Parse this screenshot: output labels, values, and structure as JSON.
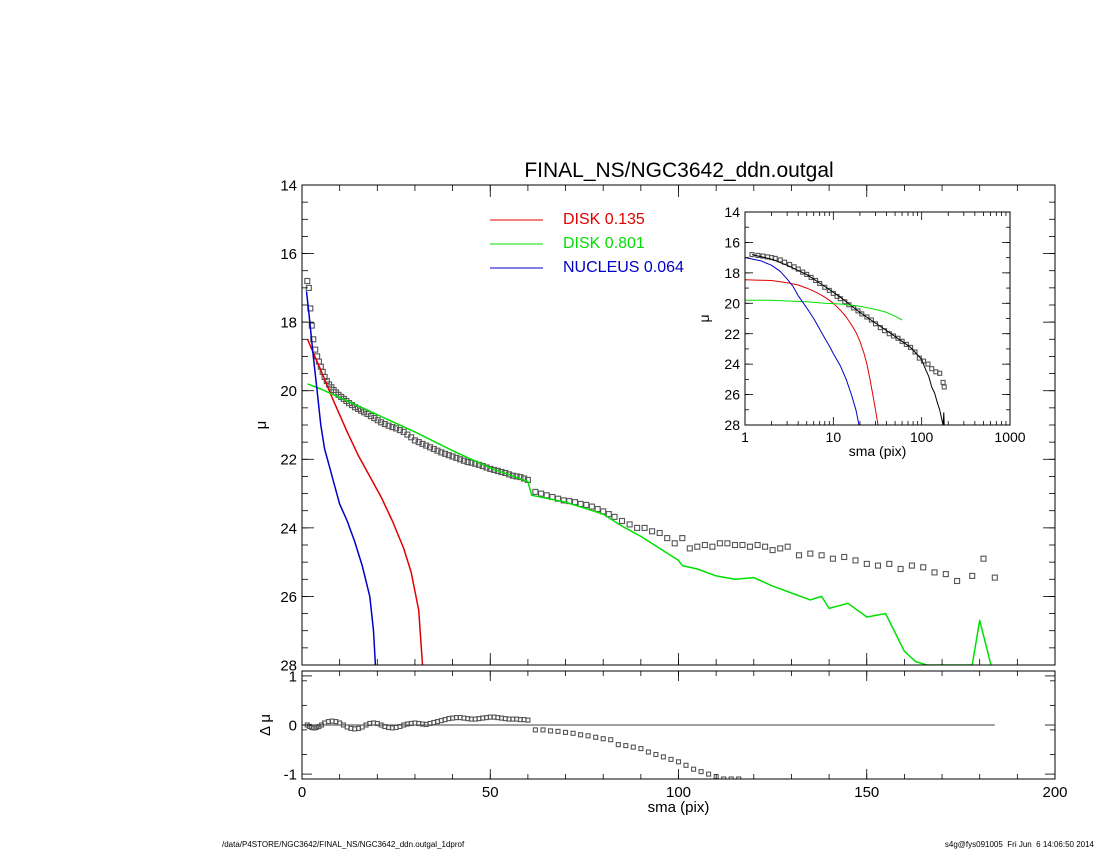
{
  "page": {
    "footer_left": "/data/P4STORE/NGC3642/FINAL_NS/NGC3642_ddn.outgal_1dprof",
    "footer_right": "s4g@fys091005  Fri Jun  6 14:06:50 2014"
  },
  "chart_data": [
    {
      "id": "main",
      "type": "scatter",
      "title": "FINAL_NS/NGC3642_ddn.outgal",
      "xlabel": "",
      "ylabel": "μ",
      "xlim": [
        0,
        200
      ],
      "ylim": [
        28,
        14
      ],
      "xticks": [
        0,
        50,
        100,
        150,
        200
      ],
      "yticks": [
        14,
        16,
        18,
        20,
        22,
        24,
        26,
        28
      ],
      "show_x_tick_labels": false,
      "legend": {
        "placement": "top-center",
        "entries": [
          {
            "label": "DISK  0.135",
            "color": "#e00000"
          },
          {
            "label": "DISK  0.801",
            "color": "#00e000"
          },
          {
            "label": "NUCLEUS  0.064",
            "color": "#0000c8"
          }
        ]
      },
      "series": [
        {
          "name": "",
          "kind": "markers",
          "color": "#555555",
          "x": [
            1.4,
            1.8,
            2.2,
            2.6,
            3.0,
            3.5,
            4.0,
            4.5,
            5.0,
            5.5,
            6.0,
            6.6,
            7.2,
            7.8,
            8.4,
            9.0,
            9.7,
            10.4,
            11.1,
            11.8,
            12.5,
            13.3,
            14.1,
            14.9,
            15.7,
            16.5,
            17.4,
            18.3,
            19.2,
            20.1,
            21.0,
            22.0,
            23.0,
            24.0,
            25.0,
            26.0,
            27.0,
            28.0,
            29.0,
            30.0,
            31.0,
            32.0,
            33.0,
            34.0,
            35.0,
            36.0,
            37.0,
            38.0,
            39.0,
            40.0,
            41.0,
            42.0,
            43.0,
            44.0,
            45.0,
            46.0,
            47.0,
            48.0,
            49.0,
            50.0,
            51.0,
            52.0,
            53.0,
            54.0,
            55.0,
            56.0,
            57.0,
            58.0,
            59.0,
            60.0,
            62,
            63.5,
            65,
            66.5,
            68,
            69.5,
            71,
            72.5,
            74,
            75.5,
            77,
            78.5,
            80,
            81.5,
            83,
            85,
            87,
            89,
            91,
            93,
            95,
            97,
            99,
            101,
            103,
            105,
            107,
            109,
            111,
            113,
            115,
            117,
            119,
            121,
            123,
            125,
            127,
            129,
            132,
            135,
            138,
            141,
            144,
            147,
            150,
            153,
            156,
            159,
            162,
            165,
            168,
            171,
            174,
            178,
            181,
            184
          ],
          "y": [
            16.8,
            17.0,
            17.6,
            18.1,
            18.5,
            18.8,
            19.0,
            19.15,
            19.3,
            19.45,
            19.6,
            19.72,
            19.82,
            19.9,
            19.98,
            20.05,
            20.12,
            20.18,
            20.24,
            20.3,
            20.36,
            20.42,
            20.48,
            20.53,
            20.58,
            20.63,
            20.68,
            20.74,
            20.8,
            20.86,
            20.92,
            20.97,
            21.02,
            21.06,
            21.1,
            21.15,
            21.2,
            21.28,
            21.36,
            21.45,
            21.5,
            21.55,
            21.6,
            21.65,
            21.7,
            21.75,
            21.8,
            21.84,
            21.88,
            21.92,
            21.96,
            22.0,
            22.04,
            22.08,
            22.1,
            22.13,
            22.16,
            22.2,
            22.24,
            22.28,
            22.31,
            22.34,
            22.37,
            22.4,
            22.44,
            22.48,
            22.5,
            22.52,
            22.56,
            22.6,
            22.95,
            23.0,
            23.05,
            23.1,
            23.15,
            23.2,
            23.22,
            23.25,
            23.3,
            23.33,
            23.38,
            23.45,
            23.52,
            23.6,
            23.68,
            23.8,
            23.9,
            24.0,
            24.0,
            24.1,
            24.15,
            24.3,
            24.45,
            24.3,
            24.6,
            24.55,
            24.5,
            24.55,
            24.45,
            24.45,
            24.5,
            24.5,
            24.55,
            24.5,
            24.55,
            24.65,
            24.6,
            24.55,
            24.8,
            24.75,
            24.8,
            24.9,
            24.85,
            24.95,
            25.05,
            25.1,
            25.05,
            25.2,
            25.1,
            25.15,
            25.3,
            25.35,
            25.55,
            25.4,
            24.9,
            25.45
          ]
        },
        {
          "name": "DISK  0.135",
          "kind": "line",
          "color": "#e00000",
          "x": [
            1.5,
            3,
            5,
            8,
            12,
            15,
            18,
            21,
            24,
            27,
            29,
            31,
            32
          ],
          "y": [
            18.5,
            18.9,
            19.4,
            20.2,
            21.2,
            21.9,
            22.5,
            23.1,
            23.8,
            24.6,
            25.3,
            26.4,
            28.0
          ]
        },
        {
          "name": "DISK  0.801",
          "kind": "line",
          "color": "#00e000",
          "x": [
            1.5,
            5,
            10,
            15,
            20,
            25,
            30,
            40,
            50,
            55,
            60,
            61,
            70,
            80,
            85,
            90,
            95,
            100,
            101,
            105,
            110,
            115,
            120,
            125,
            130,
            135,
            138,
            140,
            145,
            150,
            155,
            160,
            163,
            166,
            170,
            175,
            178,
            180,
            183
          ],
          "y": [
            19.8,
            19.95,
            20.2,
            20.45,
            20.7,
            20.95,
            21.2,
            21.75,
            22.25,
            22.45,
            22.65,
            23.05,
            23.25,
            23.6,
            23.95,
            24.25,
            24.6,
            24.95,
            25.1,
            25.2,
            25.4,
            25.5,
            25.45,
            25.7,
            25.9,
            26.1,
            26.0,
            26.35,
            26.2,
            26.6,
            26.5,
            27.6,
            27.9,
            28.0,
            28.0,
            28.0,
            28.0,
            26.7,
            28.0
          ]
        },
        {
          "name": "NUCLEUS  0.064",
          "kind": "line",
          "color": "#0000c8",
          "x": [
            1.2,
            2,
            3,
            4,
            5,
            6,
            7,
            8,
            10,
            12,
            14,
            16,
            18,
            19,
            19.5
          ],
          "y": [
            17.1,
            17.9,
            19.0,
            20.0,
            21.0,
            21.7,
            22.1,
            22.5,
            23.3,
            23.8,
            24.4,
            25.1,
            26.0,
            27.0,
            28.0
          ]
        }
      ]
    },
    {
      "id": "residual",
      "type": "scatter",
      "title": "",
      "xlabel": "sma (pix)",
      "ylabel": "Δ μ",
      "xlim": [
        0,
        200
      ],
      "ylim": [
        -1.1,
        1.1
      ],
      "xticks": [
        0,
        50,
        100,
        150,
        200
      ],
      "yticks": [
        -1,
        0,
        1
      ],
      "reference_line": {
        "x": [
          0,
          184
        ],
        "y": 0
      },
      "series": [
        {
          "name": "",
          "kind": "markers",
          "color": "#555555",
          "x": [
            1.4,
            2,
            2.6,
            3.2,
            3.8,
            4.5,
            5.2,
            6,
            7,
            8,
            9,
            10,
            11,
            12,
            13,
            14,
            15,
            16,
            17,
            18,
            19,
            20,
            21,
            22,
            23,
            24,
            25,
            26,
            27,
            28,
            29,
            30,
            31,
            32,
            33,
            34,
            35,
            36,
            37,
            38,
            39,
            40,
            41,
            42,
            43,
            44,
            45,
            46,
            47,
            48,
            49,
            50,
            51,
            52,
            53,
            54,
            55,
            56,
            57,
            58,
            59,
            60,
            62,
            64,
            66,
            68,
            70,
            72,
            74,
            76,
            78,
            80,
            82,
            84,
            86,
            88,
            90,
            92,
            94,
            96,
            98,
            100,
            102,
            104,
            106,
            108,
            110,
            112,
            114,
            116
          ],
          "y": [
            0.0,
            -0.03,
            -0.05,
            -0.06,
            -0.05,
            -0.03,
            0.0,
            0.04,
            0.07,
            0.08,
            0.07,
            0.04,
            0.0,
            -0.04,
            -0.07,
            -0.08,
            -0.07,
            -0.04,
            0.0,
            0.03,
            0.04,
            0.03,
            0.0,
            -0.03,
            -0.05,
            -0.06,
            -0.05,
            -0.03,
            0.0,
            0.02,
            0.03,
            0.04,
            0.03,
            0.02,
            0.01,
            0.03,
            0.05,
            0.07,
            0.09,
            0.11,
            0.13,
            0.14,
            0.15,
            0.15,
            0.14,
            0.13,
            0.12,
            0.12,
            0.13,
            0.14,
            0.15,
            0.16,
            0.16,
            0.15,
            0.14,
            0.13,
            0.12,
            0.12,
            0.12,
            0.11,
            0.11,
            0.1,
            -0.1,
            -0.1,
            -0.12,
            -0.13,
            -0.15,
            -0.17,
            -0.2,
            -0.22,
            -0.25,
            -0.28,
            -0.3,
            -0.4,
            -0.42,
            -0.45,
            -0.48,
            -0.55,
            -0.6,
            -0.65,
            -0.7,
            -0.75,
            -0.82,
            -0.9,
            -0.95,
            -1.0,
            -1.05,
            -1.1,
            -1.1,
            -1.1
          ]
        }
      ]
    },
    {
      "id": "inset",
      "type": "scatter",
      "title": "",
      "xlabel": "sma (pix)",
      "ylabel": "μ",
      "xscale": "log",
      "xlim": [
        1,
        1000
      ],
      "ylim": [
        28,
        14
      ],
      "xticks": [
        1,
        10,
        100,
        1000
      ],
      "yticks": [
        14,
        16,
        18,
        20,
        22,
        24,
        26,
        28
      ],
      "series": [
        {
          "name": "",
          "kind": "markers",
          "color": "#555555",
          "x": [
            1.2,
            1.4,
            1.6,
            1.8,
            2.0,
            2.2,
            2.5,
            2.8,
            3.2,
            3.6,
            4.0,
            4.5,
            5.0,
            5.6,
            6.3,
            7.0,
            8.0,
            9.0,
            10,
            11,
            12,
            13.5,
            15,
            17,
            19,
            21,
            24,
            27,
            30,
            34,
            38,
            43,
            48,
            54,
            60,
            67,
            75,
            84,
            94,
            105,
            118,
            130,
            145,
            160,
            175,
            180
          ],
          "y": [
            16.8,
            16.85,
            16.9,
            16.95,
            17.0,
            17.05,
            17.15,
            17.3,
            17.45,
            17.6,
            17.75,
            17.95,
            18.1,
            18.3,
            18.5,
            18.7,
            18.95,
            19.15,
            19.35,
            19.55,
            19.7,
            19.9,
            20.1,
            20.3,
            20.5,
            20.7,
            20.9,
            21.1,
            21.35,
            21.6,
            21.8,
            22.0,
            22.15,
            22.3,
            22.5,
            22.7,
            22.9,
            23.2,
            23.6,
            23.8,
            24.0,
            24.3,
            24.5,
            24.6,
            25.2,
            25.5
          ]
        },
        {
          "name": "",
          "kind": "line",
          "color": "#000000",
          "x": [
            1.2,
            2,
            3,
            5,
            8,
            12,
            20,
            30,
            45,
            60,
            75,
            90,
            100,
            110,
            120,
            130,
            140,
            150,
            160,
            170,
            175,
            178,
            180
          ],
          "y": [
            16.8,
            17.1,
            17.5,
            18.1,
            18.9,
            19.6,
            20.6,
            21.3,
            22.0,
            22.5,
            22.9,
            23.4,
            23.7,
            24.3,
            24.8,
            25.5,
            25.9,
            26.5,
            27.0,
            27.7,
            28.0,
            27.2,
            28.0
          ]
        },
        {
          "name": "DISK  0.135",
          "kind": "line",
          "color": "#e00000",
          "x": [
            1,
            1.5,
            2,
            3,
            4,
            5,
            6,
            7,
            8,
            9,
            10,
            12,
            14,
            16,
            18,
            20,
            22,
            24,
            26,
            28,
            30,
            32
          ],
          "y": [
            18.45,
            18.48,
            18.5,
            18.65,
            18.8,
            19.0,
            19.2,
            19.4,
            19.6,
            19.8,
            20.0,
            20.45,
            20.9,
            21.4,
            21.9,
            22.5,
            23.2,
            24.0,
            25.0,
            26.0,
            27.0,
            28.0
          ]
        },
        {
          "name": "DISK  0.801",
          "kind": "line",
          "color": "#00e000",
          "x": [
            1,
            2,
            3,
            5,
            8,
            12,
            20,
            30,
            40,
            50,
            60
          ],
          "y": [
            19.8,
            19.8,
            19.85,
            19.9,
            20.0,
            20.05,
            20.2,
            20.4,
            20.6,
            20.85,
            21.1
          ]
        },
        {
          "name": "NUCLEUS  0.064",
          "kind": "line",
          "color": "#0000c8",
          "x": [
            1,
            1.5,
            2,
            2.5,
            3,
            3.5,
            4,
            5,
            6,
            7,
            8,
            9,
            10,
            12,
            14,
            16,
            18,
            19.5
          ],
          "y": [
            17.0,
            17.2,
            17.5,
            17.9,
            18.4,
            18.9,
            19.5,
            20.3,
            21.0,
            21.7,
            22.3,
            22.8,
            23.3,
            24.1,
            25.0,
            26.0,
            27.0,
            28.0
          ]
        }
      ]
    }
  ]
}
